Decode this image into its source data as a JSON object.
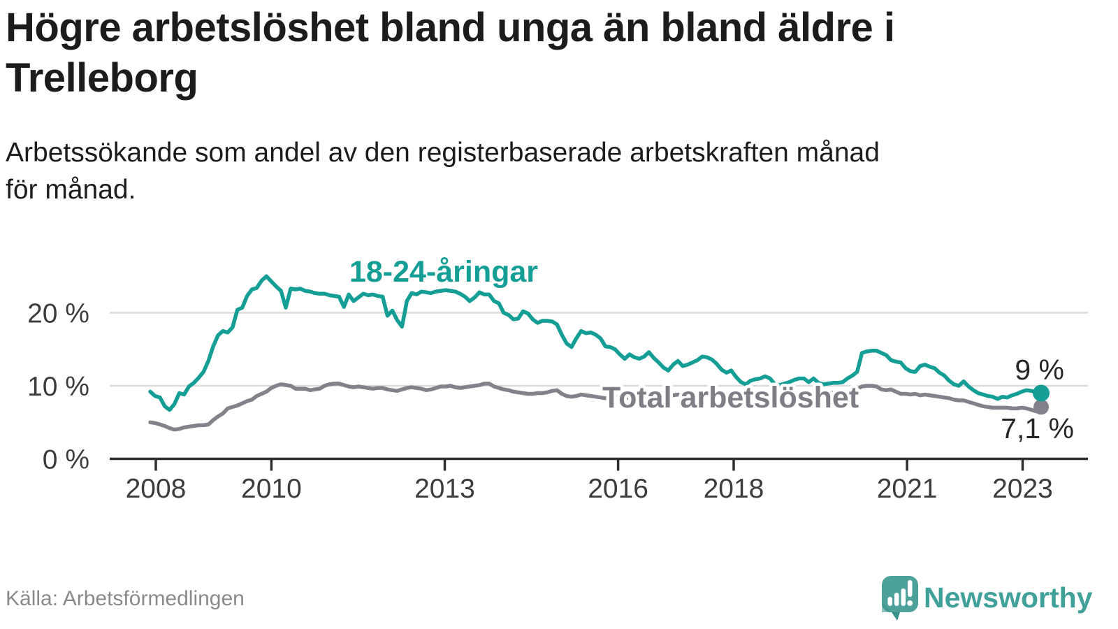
{
  "title_lines": [
    "Högre arbetslöshet bland unga än bland äldre i",
    "Trelleborg"
  ],
  "subtitle_lines": [
    "Arbetssökande som andel av den registerbaserade arbetskraften månad",
    "för månad."
  ],
  "source": "Källa: Arbetsförmedlingen",
  "branding": {
    "wordmark": "Newsworthy"
  },
  "colors": {
    "youth_line": "#149e95",
    "total_line": "#82828a",
    "total_label": "#7e7e86",
    "end_label": "#262626",
    "axis_text": "#3c3c3c",
    "grid": "#dcdcdc",
    "axis": "#2e2e2e",
    "title_text": "#1c1c1a",
    "source_text": "#8a8a8a",
    "logo_teal": "#4ca29b",
    "logo_teal_dark": "#38908a"
  },
  "chart_data": {
    "type": "line",
    "x_start": "2008-01",
    "x_end": "2023-05",
    "x_unit": "month",
    "ylim": [
      0,
      27
    ],
    "grid": "horizontal",
    "y_ticks": [
      {
        "label": "0 %",
        "value": 0
      },
      {
        "label": "10 %",
        "value": 10
      },
      {
        "label": "20 %",
        "value": 20
      }
    ],
    "x_ticks": [
      {
        "label": "2008",
        "year": 2008
      },
      {
        "label": "2010",
        "year": 2010
      },
      {
        "label": "2013",
        "year": 2013
      },
      {
        "label": "2016",
        "year": 2016
      },
      {
        "label": "2018",
        "year": 2018
      },
      {
        "label": "2021",
        "year": 2021
      },
      {
        "label": "2023",
        "year": 2023
      }
    ],
    "series": [
      {
        "name": "18-24-åringar",
        "end_label": "9 %",
        "end_value": 9.0,
        "color": "#149e95",
        "values": [
          9.2,
          8.6,
          8.4,
          7.2,
          6.7,
          7.5,
          9.0,
          8.8,
          9.9,
          10.4,
          11.1,
          11.9,
          13.4,
          15.4,
          16.9,
          17.5,
          17.3,
          18.0,
          20.4,
          20.7,
          22.3,
          23.2,
          23.4,
          24.4,
          25.0,
          24.3,
          23.6,
          23.0,
          20.7,
          23.3,
          23.2,
          23.3,
          23.0,
          22.9,
          22.7,
          22.6,
          22.6,
          22.4,
          22.3,
          22.2,
          20.8,
          22.5,
          21.6,
          22.1,
          22.6,
          22.4,
          22.5,
          22.3,
          22.2,
          19.6,
          20.3,
          19.0,
          18.1,
          21.6,
          22.7,
          22.5,
          22.9,
          22.8,
          22.7,
          22.9,
          23.0,
          23.1,
          23.0,
          22.9,
          22.6,
          22.2,
          21.6,
          22.1,
          22.8,
          22.5,
          22.5,
          21.6,
          21.3,
          20.0,
          19.7,
          19.1,
          19.2,
          20.2,
          19.9,
          19.1,
          18.6,
          18.9,
          18.9,
          18.8,
          18.4,
          17.0,
          15.8,
          15.3,
          16.5,
          17.5,
          17.2,
          17.3,
          17.0,
          16.5,
          15.4,
          15.3,
          15.0,
          14.3,
          13.7,
          14.3,
          13.9,
          13.7,
          14.0,
          14.6,
          13.8,
          13.2,
          12.5,
          12.1,
          12.9,
          13.4,
          12.7,
          12.9,
          13.2,
          13.5,
          14.0,
          13.9,
          13.6,
          13.0,
          12.2,
          11.8,
          12.1,
          11.2,
          10.5,
          10.2,
          10.7,
          10.9,
          11.0,
          11.3,
          11.0,
          10.2,
          10.1,
          10.3,
          10.5,
          10.8,
          11.0,
          11.0,
          10.5,
          11.0,
          10.4,
          10.2,
          10.3,
          10.4,
          10.4,
          10.5,
          11.0,
          11.4,
          11.9,
          14.5,
          14.7,
          14.8,
          14.8,
          14.5,
          14.2,
          13.5,
          13.3,
          13.2,
          12.4,
          12.0,
          11.9,
          12.7,
          12.9,
          12.6,
          12.4,
          11.8,
          11.4,
          10.7,
          10.2,
          10.0,
          10.6,
          9.9,
          9.4,
          9.0,
          8.8,
          8.6,
          8.5,
          8.2,
          8.5,
          8.4,
          8.7,
          8.9,
          9.2,
          9.4,
          9.3,
          9.1,
          9.0
        ]
      },
      {
        "name": "Total arbetslöshet",
        "end_label": "7,1 %",
        "end_value": 7.1,
        "color": "#82828a",
        "values": [
          5.0,
          4.9,
          4.7,
          4.5,
          4.2,
          4.0,
          4.1,
          4.3,
          4.4,
          4.5,
          4.6,
          4.6,
          4.7,
          5.3,
          5.8,
          6.2,
          6.9,
          7.1,
          7.3,
          7.6,
          7.9,
          8.1,
          8.6,
          8.9,
          9.2,
          9.7,
          10.0,
          10.2,
          10.1,
          10.0,
          9.6,
          9.6,
          9.6,
          9.4,
          9.5,
          9.6,
          10.0,
          10.2,
          10.3,
          10.3,
          10.1,
          9.9,
          9.8,
          9.9,
          9.8,
          9.7,
          9.6,
          9.7,
          9.7,
          9.5,
          9.4,
          9.3,
          9.5,
          9.7,
          9.8,
          9.7,
          9.6,
          9.4,
          9.5,
          9.7,
          9.9,
          9.9,
          10.0,
          9.8,
          9.7,
          9.8,
          9.9,
          10.0,
          10.1,
          10.3,
          10.3,
          9.9,
          9.7,
          9.5,
          9.4,
          9.2,
          9.1,
          9.0,
          8.9,
          8.9,
          9.0,
          9.0,
          9.1,
          9.3,
          9.4,
          8.9,
          8.6,
          8.5,
          8.6,
          8.8,
          8.7,
          8.6,
          8.5,
          8.4,
          8.3,
          8.3,
          8.4,
          8.5,
          8.4,
          8.3,
          8.3,
          8.4,
          8.6,
          8.7,
          8.6,
          8.5,
          8.5,
          8.6,
          8.7,
          8.8,
          8.7,
          8.6,
          8.7,
          8.8,
          9.0,
          9.0,
          8.9,
          8.8,
          8.7,
          8.7,
          8.8,
          8.7,
          8.6,
          8.5,
          8.6,
          8.7,
          8.8,
          8.9,
          8.8,
          8.7,
          8.6,
          8.7,
          8.8,
          8.9,
          8.9,
          9.0,
          9.0,
          9.1,
          9.2,
          9.2,
          9.1,
          9.0,
          9.0,
          9.1,
          9.2,
          9.3,
          9.6,
          9.9,
          10.0,
          10.0,
          9.9,
          9.5,
          9.4,
          9.5,
          9.2,
          8.9,
          8.9,
          8.8,
          8.9,
          8.7,
          8.8,
          8.7,
          8.6,
          8.5,
          8.4,
          8.3,
          8.1,
          8.0,
          8.0,
          7.8,
          7.6,
          7.4,
          7.2,
          7.1,
          7.0,
          7.0,
          7.0,
          7.0,
          6.9,
          6.9,
          7.0,
          6.9,
          6.7,
          6.5,
          7.1
        ]
      }
    ]
  }
}
